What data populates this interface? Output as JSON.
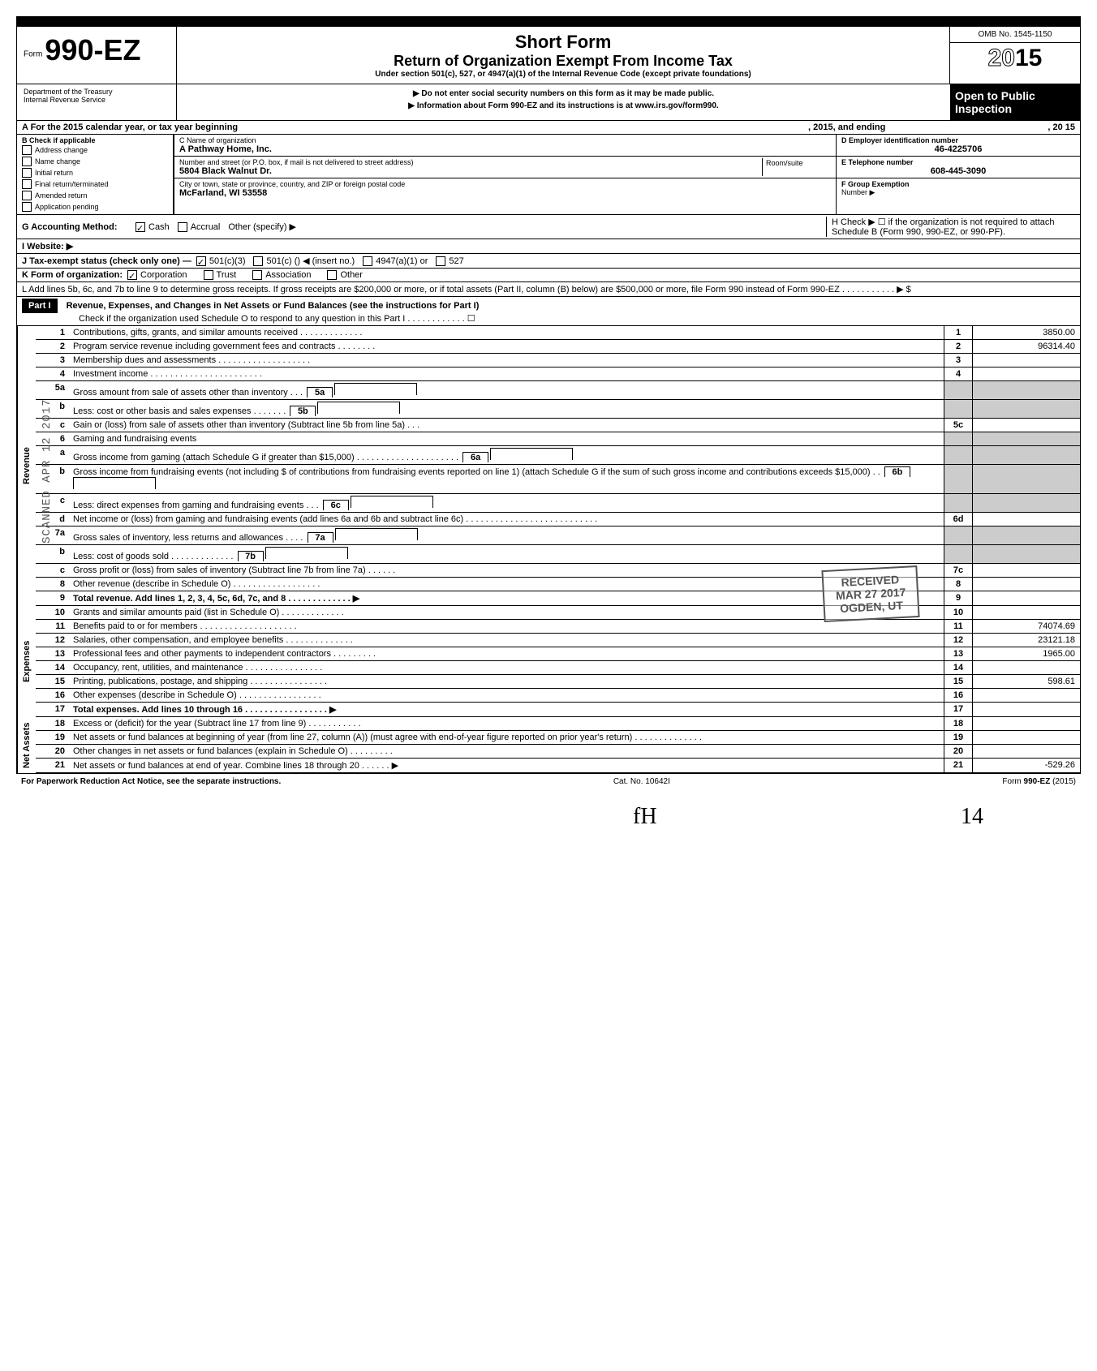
{
  "header": {
    "form_prefix": "Form",
    "form_number": "990-EZ",
    "title": "Short Form",
    "subtitle": "Return of Organization Exempt From Income Tax",
    "under_section": "Under section 501(c), 527, or 4947(a)(1) of the Internal Revenue Code (except private foundations)",
    "warning1": "▶ Do not enter social security numbers on this form as it may be made public.",
    "warning2": "▶ Information about Form 990-EZ and its instructions is at www.irs.gov/form990.",
    "omb": "OMB No. 1545-1150",
    "year_prefix": "20",
    "year_suffix": "15",
    "open_public": "Open to Public Inspection",
    "dept1": "Department of the Treasury",
    "dept2": "Internal Revenue Service"
  },
  "line_a": {
    "text": "A  For the 2015 calendar year, or tax year beginning",
    "mid": ", 2015, and ending",
    "end": ", 20    15"
  },
  "section_b": {
    "label": "B  Check if applicable",
    "items": [
      "Address change",
      "Name change",
      "Initial return",
      "Final return/terminated",
      "Amended return",
      "Application pending"
    ]
  },
  "section_c": {
    "label_name": "C  Name of organization",
    "org_name": "A Pathway Home, Inc.",
    "label_addr": "Number and street (or P.O. box, if mail is not delivered to street address)",
    "room_label": "Room/suite",
    "address": "5804 Black Walnut Dr.",
    "label_city": "City or town, state or province, country, and ZIP or foreign postal code",
    "city": "McFarland, WI 53558"
  },
  "section_d": {
    "label": "D Employer identification number",
    "value": "46-4225706"
  },
  "section_e": {
    "label": "E Telephone number",
    "value": "608-445-3090"
  },
  "section_f": {
    "label": "F  Group Exemption",
    "label2": "Number  ▶"
  },
  "section_g": {
    "label": "G  Accounting Method:",
    "cash": "Cash",
    "accrual": "Accrual",
    "other": "Other (specify) ▶"
  },
  "section_h": {
    "text": "H  Check ▶ ☐ if the organization is not required to attach Schedule B (Form 990, 990-EZ, or 990-PF)."
  },
  "section_i": {
    "label": "I   Website: ▶"
  },
  "section_j": {
    "label": "J  Tax-exempt status (check only one) —",
    "opt1": "501(c)(3)",
    "opt2": "501(c) (",
    "opt2b": ")  ◀ (insert no.)",
    "opt3": "4947(a)(1) or",
    "opt4": "527"
  },
  "section_k": {
    "label": "K  Form of organization:",
    "c": "Corporation",
    "t": "Trust",
    "a": "Association",
    "o": "Other"
  },
  "section_l": {
    "text": "L  Add lines 5b, 6c, and 7b to line 9 to determine gross receipts. If gross receipts are $200,000 or more, or if total assets (Part II, column (B) below) are $500,000 or more, file Form 990 instead of Form 990-EZ  .    .    .    .    .    .    .    .    .    .    . ▶   $"
  },
  "part1": {
    "header": "Part I",
    "title": "Revenue, Expenses, and Changes in Net Assets or Fund Balances (see the instructions for Part I)",
    "check": "Check if the organization used Schedule O to respond to any question in this Part I  .   .   .   .   .   .   .   .   .   .   .   .  ☐"
  },
  "sidelabels": {
    "rev": "Revenue",
    "exp": "Expenses",
    "net": "Net Assets"
  },
  "lines": [
    {
      "n": "1",
      "d": "Contributions, gifts, grants, and similar amounts received .   .   .   .   .   .   .   .   .   .   .   .   .",
      "box": "1",
      "v": "3850.00"
    },
    {
      "n": "2",
      "d": "Program service revenue including government fees and contracts   .   .   .   .   .   .   .   .",
      "box": "2",
      "v": "96314.40"
    },
    {
      "n": "3",
      "d": "Membership dues and assessments .   .   .   .   .   .   .   .   .   .   .   .   .   .   .   .   .   .   .",
      "box": "3",
      "v": ""
    },
    {
      "n": "4",
      "d": "Investment income    .   .   .   .   .   .   .   .   .   .   .   .   .   .   .   .   .   .   .   .   .   .   .",
      "box": "4",
      "v": ""
    },
    {
      "n": "5a",
      "d": "Gross amount from sale of assets other than inventory   .   .   .",
      "inline": "5a",
      "shaded": true
    },
    {
      "n": "b",
      "d": "Less: cost or other basis and sales expenses .   .   .   .   .   .   .",
      "inline": "5b",
      "shaded": true
    },
    {
      "n": "c",
      "d": "Gain or (loss) from sale of assets other than inventory (Subtract line 5b from line 5a) .   .   .",
      "box": "5c",
      "v": ""
    },
    {
      "n": "6",
      "d": "Gaming and fundraising events",
      "shaded": true
    },
    {
      "n": "a",
      "d": "Gross income from gaming (attach Schedule G if greater than $15,000) .   .   .   .   .   .   .   .   .   .   .   .   .   .   .   .   .   .   .   .   .",
      "inline": "6a",
      "shaded": true
    },
    {
      "n": "b",
      "d": "Gross income from fundraising events (not including  $                          of contributions from fundraising events reported on line 1) (attach Schedule G if the sum of such gross income and contributions exceeds $15,000) .   .",
      "inline": "6b",
      "shaded": true
    },
    {
      "n": "c",
      "d": "Less: direct expenses from gaming and fundraising events   .   .   .",
      "inline": "6c",
      "shaded": true
    },
    {
      "n": "d",
      "d": "Net income or (loss) from gaming and fundraising events (add lines 6a and 6b and subtract line 6c)    .   .   .   .   .   .   .   .   .   .   .   .   .   .   .   .   .   .   .   .   .   .   .   .   .   .   .",
      "box": "6d",
      "v": ""
    },
    {
      "n": "7a",
      "d": "Gross sales of inventory, less returns and allowances   .   .   .   .",
      "inline": "7a",
      "shaded": true
    },
    {
      "n": "b",
      "d": "Less: cost of goods sold     .   .   .   .   .   .   .   .   .   .   .   .   .",
      "inline": "7b",
      "shaded": true
    },
    {
      "n": "c",
      "d": "Gross profit or (loss) from sales of inventory (Subtract line 7b from line 7a)   .   .   .   .   .   .",
      "box": "7c",
      "v": ""
    },
    {
      "n": "8",
      "d": "Other revenue (describe in Schedule O) .   .   .   .   .   .   .   .   .   .   .   .   .   .   .   .   .   .",
      "box": "8",
      "v": ""
    },
    {
      "n": "9",
      "d": "Total revenue. Add lines 1, 2, 3, 4, 5c, 6d, 7c, and 8   .   .   .   .   .   .   .   .   .   .   .   .   . ▶",
      "box": "9",
      "v": "",
      "bold": true
    }
  ],
  "exp_lines": [
    {
      "n": "10",
      "d": "Grants and similar amounts paid (list in Schedule O)   .   .   .   .   .   .   .   .   .   .   .   .   .",
      "box": "10",
      "v": ""
    },
    {
      "n": "11",
      "d": "Benefits paid to or for members   .   .   .   .   .   .   .   .   .   .   .   .   .   .   .   .   .   .   .   .",
      "box": "11",
      "v": "74074.69"
    },
    {
      "n": "12",
      "d": "Salaries, other compensation, and employee benefits .   .   .   .   .   .   .   .   .   .   .   .   .   .",
      "box": "12",
      "v": "23121.18"
    },
    {
      "n": "13",
      "d": "Professional fees and other payments to independent contractors .   .   .   .   .   .   .   .   .",
      "box": "13",
      "v": "1965.00"
    },
    {
      "n": "14",
      "d": "Occupancy, rent, utilities, and maintenance   .   .   .   .   .   .   .   .   .   .   .   .   .   .   .   .",
      "box": "14",
      "v": ""
    },
    {
      "n": "15",
      "d": "Printing, publications, postage, and shipping .   .   .   .   .   .   .   .   .   .   .   .   .   .   .   .",
      "box": "15",
      "v": "598.61"
    },
    {
      "n": "16",
      "d": "Other expenses (describe in Schedule O)   .   .   .   .   .   .   .   .   .   .   .   .   .   .   .   .   .",
      "box": "16",
      "v": ""
    },
    {
      "n": "17",
      "d": "Total expenses. Add lines 10 through 16  .   .   .   .   .   .   .   .   .   .   .   .   .   .   .   .   . ▶",
      "box": "17",
      "v": "",
      "bold": true
    }
  ],
  "net_lines": [
    {
      "n": "18",
      "d": "Excess or (deficit) for the year (Subtract line 17 from line 9)    .   .   .   .   .   .   .   .   .   .   .",
      "box": "18",
      "v": ""
    },
    {
      "n": "19",
      "d": "Net assets or fund balances at beginning of year (from line 27, column (A)) (must agree with end-of-year figure reported on prior year's return)    .   .   .   .   .   .   .   .   .   .   .   .   .   .",
      "box": "19",
      "v": ""
    },
    {
      "n": "20",
      "d": "Other changes in net assets or fund balances (explain in Schedule O) .   .   .   .   .   .   .   .   .",
      "box": "20",
      "v": ""
    },
    {
      "n": "21",
      "d": "Net assets or fund balances at end of year. Combine lines 18 through 20   .   .   .   .   .   . ▶",
      "box": "21",
      "v": "-529.26"
    }
  ],
  "footer": {
    "left": "For Paperwork Reduction Act Notice, see the separate instructions.",
    "mid": "Cat. No. 10642I",
    "right": "Form 990-EZ (2015)"
  },
  "stamp": {
    "l1": "RECEIVED",
    "l2": "MAR 27 2017",
    "l3": "OGDEN, UT"
  },
  "vertical_stamp": "SCANNED APR 12 2017",
  "hand1": "fH",
  "hand2": "14"
}
